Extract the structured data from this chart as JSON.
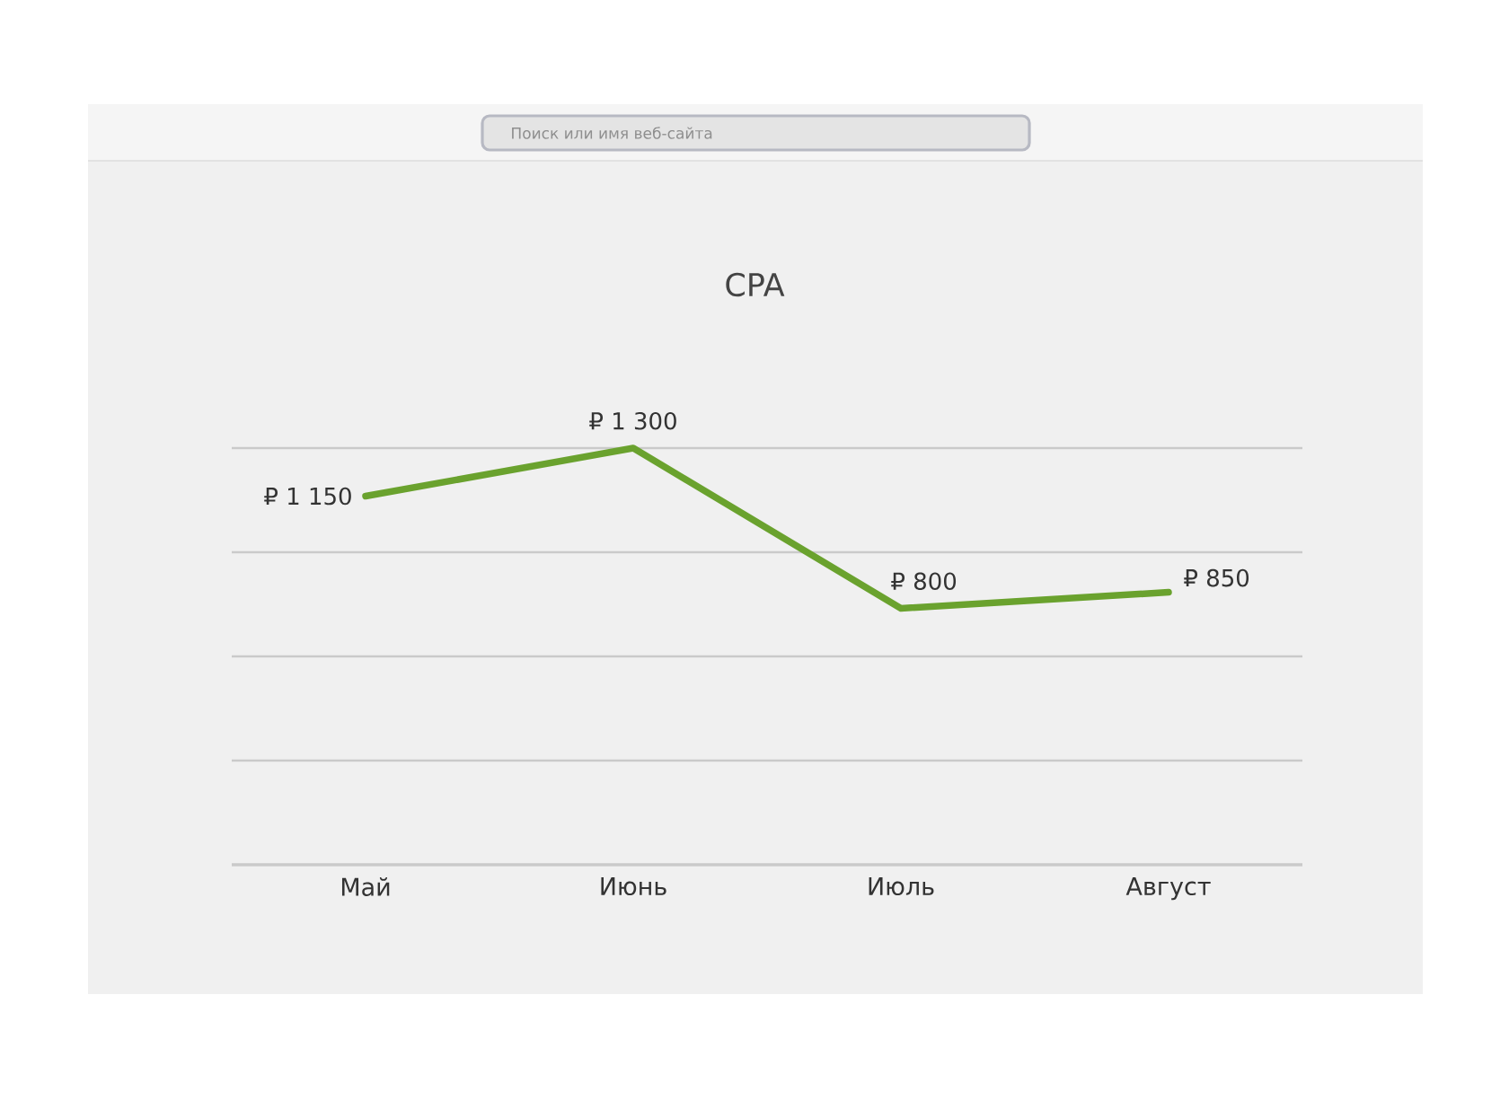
{
  "chart_data": {
    "type": "line",
    "title": "CPA",
    "categories": [
      "Май",
      "Июнь",
      "Июль",
      "Август"
    ],
    "values": [
      1150,
      1300,
      800,
      850
    ],
    "color": "#6aa22e",
    "value_labels": [
      "₽ 1 150",
      "₽ 1 300",
      "₽ 800",
      "₽ 850"
    ],
    "ylim": [
      0,
      1300
    ],
    "yticks": [
      {
        "value": 0,
        "label": null
      },
      {
        "value": 325,
        "label": null
      },
      {
        "value": 650,
        "label": null
      },
      {
        "value": 975,
        "label": null
      },
      {
        "value": 1300,
        "label": null
      }
    ],
    "grid": "y",
    "tick_labels": "x",
    "annotations": [
      "Поиск или имя веб-сайта"
    ]
  }
}
